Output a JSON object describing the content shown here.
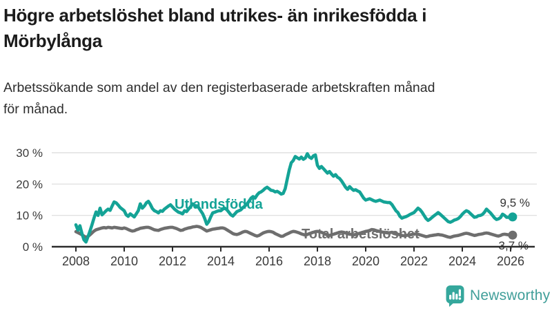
{
  "header": {
    "title_lines": [
      "Högre arbetslöshet bland utrikes- än inrikesfödda i",
      "Mörbylånga"
    ],
    "subtitle_lines": [
      "Arbetssökande som andel av den registerbaserade arbetskraften månad",
      "för månad."
    ]
  },
  "chart_data": {
    "type": "line",
    "title": "Högre arbetslöshet bland utrikes- än inrikesfödda i Mörbylånga",
    "subtitle": "Arbetssökande som andel av den registerbaserade arbetskraften månad för månad.",
    "grid": "horizontal",
    "x_axis": {
      "start_year": 2008,
      "points_per_year": 12,
      "ticks": [
        2008,
        2010,
        2012,
        2014,
        2016,
        2018,
        2020,
        2022,
        2024,
        2026
      ]
    },
    "y_axis": {
      "unit": "%",
      "max": 32,
      "ticks": [
        {
          "value": 0,
          "label": "0 %"
        },
        {
          "value": 10,
          "label": "10 %"
        },
        {
          "value": 20,
          "label": "20 %"
        },
        {
          "value": 30,
          "label": "30 %"
        }
      ]
    },
    "series": [
      {
        "name": "Utlandsfödda",
        "color": "#14A396",
        "end_value": 9.5,
        "end_label": "9,5 %",
        "values": [
          7.0,
          5.3,
          6.7,
          4.2,
          2.2,
          1.5,
          3.2,
          5.0,
          7.0,
          9.2,
          11.1,
          10.0,
          12.3,
          10.2,
          10.8,
          11.5,
          12.0,
          11.6,
          13.0,
          14.3,
          14.0,
          13.3,
          12.5,
          12.0,
          11.5,
          10.2,
          9.7,
          10.5,
          10.0,
          9.5,
          10.5,
          11.5,
          13.7,
          12.3,
          13.0,
          14.0,
          14.5,
          13.5,
          12.2,
          11.5,
          11.2,
          10.8,
          11.5,
          11.3,
          12.0,
          12.5,
          13.0,
          13.4,
          12.7,
          12.0,
          11.5,
          11.0,
          10.8,
          10.5,
          11.5,
          11.2,
          12.0,
          12.8,
          13.7,
          13.2,
          13.0,
          12.5,
          11.5,
          10.5,
          9.0,
          7.2,
          8.0,
          9.5,
          10.8,
          11.0,
          11.3,
          11.5,
          11.5,
          12.0,
          12.3,
          11.8,
          11.0,
          10.2,
          9.8,
          10.5,
          11.2,
          11.5,
          11.8,
          12.5,
          13.0,
          13.7,
          14.5,
          15.5,
          16.0,
          15.5,
          16.5,
          17.2,
          17.5,
          18.0,
          18.6,
          19.0,
          18.5,
          18.0,
          17.9,
          17.5,
          17.7,
          17.3,
          16.8,
          17.0,
          18.5,
          21.6,
          24.5,
          26.8,
          27.5,
          28.8,
          28.4,
          28.0,
          28.6,
          27.9,
          28.3,
          29.7,
          28.6,
          28.2,
          29.0,
          29.3,
          26.0,
          25.0,
          25.6,
          24.9,
          24.2,
          23.5,
          24.0,
          23.2,
          22.5,
          23.0,
          22.2,
          21.8,
          21.0,
          20.0,
          19.0,
          18.3,
          19.2,
          18.5,
          18.0,
          18.2,
          17.8,
          17.5,
          16.5,
          15.5,
          14.9,
          15.1,
          15.3,
          15.0,
          14.7,
          14.5,
          14.7,
          14.9,
          14.6,
          14.3,
          14.2,
          14.1,
          14.1,
          13.5,
          12.5,
          11.5,
          10.9,
          9.7,
          9.1,
          9.4,
          9.6,
          9.9,
          10.3,
          10.6,
          10.9,
          11.6,
          12.3,
          11.8,
          11.0,
          10.0,
          9.0,
          8.4,
          8.8,
          9.4,
          9.9,
          10.4,
          10.9,
          10.4,
          9.8,
          9.2,
          8.6,
          8.0,
          7.8,
          8.1,
          8.5,
          8.7,
          9.0,
          9.6,
          10.4,
          11.0,
          11.5,
          11.2,
          10.6,
          10.0,
          9.4,
          9.5,
          9.9,
          10.0,
          10.3,
          11.0,
          12.0,
          11.4,
          10.8,
          10.0,
          9.2,
          8.7,
          8.9,
          9.3,
          10.4,
          10.0,
          9.4,
          9.4,
          9.6,
          9.5
        ]
      },
      {
        "name": "Total arbetslöshet",
        "color": "#6E6E6E",
        "end_value": 3.7,
        "end_label": "3,7 %",
        "values": [
          4.8,
          4.5,
          4.2,
          3.8,
          3.4,
          3.0,
          3.3,
          3.8,
          4.4,
          5.0,
          5.4,
          5.6,
          5.8,
          6.0,
          6.1,
          6.0,
          6.2,
          6.1,
          6.0,
          6.2,
          6.1,
          6.0,
          5.9,
          5.8,
          6.0,
          5.8,
          5.5,
          5.2,
          5.0,
          5.1,
          5.4,
          5.6,
          5.9,
          6.0,
          6.1,
          6.2,
          6.2,
          6.0,
          5.7,
          5.4,
          5.3,
          5.2,
          5.5,
          5.7,
          5.9,
          6.0,
          6.1,
          6.2,
          6.2,
          6.0,
          5.8,
          5.5,
          5.2,
          5.3,
          5.6,
          5.8,
          6.0,
          6.1,
          6.3,
          6.4,
          6.5,
          6.4,
          6.2,
          5.8,
          5.4,
          5.0,
          5.2,
          5.4,
          5.6,
          5.7,
          5.8,
          5.9,
          6.0,
          6.0,
          5.8,
          5.4,
          5.0,
          4.6,
          4.2,
          4.0,
          3.9,
          4.1,
          4.4,
          4.7,
          4.9,
          4.8,
          4.5,
          4.2,
          3.9,
          3.6,
          3.4,
          3.6,
          4.0,
          4.4,
          4.6,
          4.8,
          4.9,
          4.8,
          4.6,
          4.2,
          3.9,
          3.6,
          3.3,
          3.4,
          3.8,
          4.1,
          4.4,
          4.7,
          4.9,
          4.8,
          4.6,
          4.4,
          4.1,
          3.9,
          3.7,
          3.9,
          4.2,
          4.4,
          4.6,
          4.8,
          4.9,
          4.8,
          4.6,
          4.3,
          4.0,
          3.8,
          3.6,
          3.8,
          4.0,
          4.2,
          4.4,
          4.6,
          4.7,
          4.6,
          4.4,
          4.2,
          4.0,
          3.9,
          3.8,
          3.9,
          4.1,
          4.3,
          4.5,
          4.7,
          4.9,
          5.0,
          5.2,
          5.5,
          5.4,
          5.2,
          5.0,
          4.9,
          4.7,
          4.6,
          4.5,
          4.4,
          4.5,
          4.6,
          4.4,
          4.2,
          4.0,
          3.8,
          3.6,
          3.5,
          3.6,
          3.7,
          3.8,
          3.9,
          4.0,
          4.1,
          4.0,
          3.8,
          3.6,
          3.4,
          3.2,
          3.3,
          3.5,
          3.6,
          3.7,
          3.8,
          3.9,
          3.8,
          3.7,
          3.5,
          3.3,
          3.1,
          3.0,
          3.2,
          3.4,
          3.5,
          3.6,
          3.8,
          4.0,
          4.2,
          4.3,
          4.2,
          4.0,
          3.8,
          3.6,
          3.7,
          3.9,
          4.0,
          4.1,
          4.3,
          4.4,
          4.3,
          4.1,
          3.9,
          3.7,
          3.5,
          3.4,
          3.6,
          3.9,
          4.0,
          3.9,
          3.8,
          3.7,
          3.7
        ]
      }
    ]
  },
  "footer": {
    "brand": "Newsworthy",
    "logo_icon": "bar-chart-speech-bubble-icon",
    "brand_color": "#419f9a"
  },
  "colors": {
    "accent_teal": "#14A396",
    "series_gray": "#6E6E6E",
    "axis": "#2B2B2B",
    "gridline": "#DBDBDB",
    "axis_text": "#3A3A3A",
    "title_text": "#1B1B1B"
  }
}
